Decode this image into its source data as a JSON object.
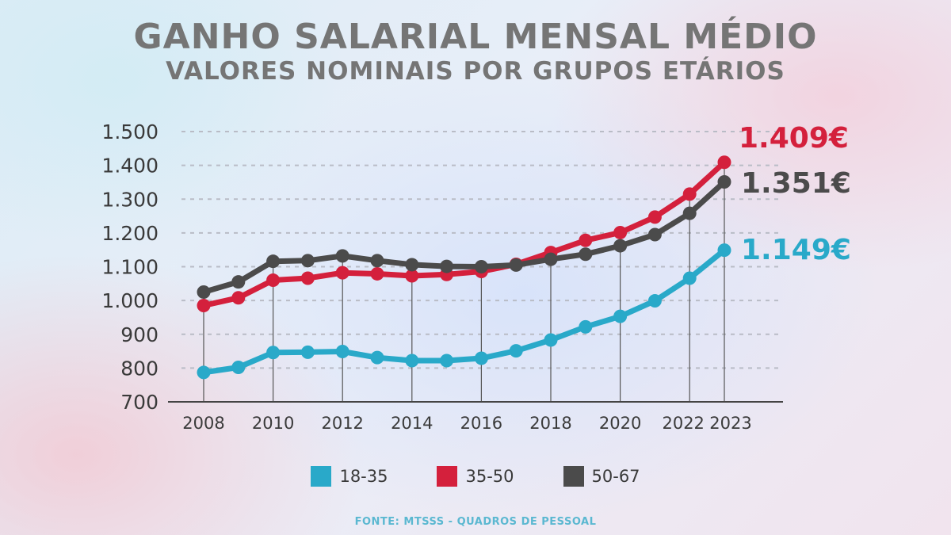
{
  "header": {
    "title": "GANHO SALARIAL MENSAL MÉDIO",
    "subtitle": "VALORES NOMINAIS POR GRUPOS ETÁRIOS"
  },
  "footer": {
    "source": "FONTE: MTSSS - QUADROS DE PESSOAL"
  },
  "chart_data": {
    "type": "line",
    "title": "GANHO SALARIAL MENSAL MÉDIO",
    "subtitle": "VALORES NOMINAIS POR GRUPOS ETÁRIOS",
    "xlabel": "",
    "ylabel": "",
    "x": [
      2008,
      2009,
      2010,
      2011,
      2012,
      2013,
      2014,
      2015,
      2016,
      2017,
      2018,
      2019,
      2020,
      2021,
      2022,
      2023
    ],
    "x_tick_labels": [
      "2008",
      "2010",
      "2012",
      "2014",
      "2016",
      "2018",
      "2020",
      "2022",
      "2023"
    ],
    "x_tick_values": [
      2008,
      2010,
      2012,
      2014,
      2016,
      2018,
      2020,
      2022,
      2023
    ],
    "ylim": [
      700,
      1500
    ],
    "y_ticks": [
      700,
      800,
      900,
      1000,
      1100,
      1200,
      1300,
      1400,
      1500
    ],
    "y_tick_labels": [
      "700",
      "800",
      "900",
      "1.000",
      "1.100",
      "1.200",
      "1.300",
      "1.400",
      "1.500"
    ],
    "grid": true,
    "legend_position": "bottom",
    "series": [
      {
        "name": "18-35",
        "color": "#29a9c9",
        "values": [
          787,
          802,
          846,
          847,
          849,
          831,
          822,
          822,
          829,
          851,
          883,
          922,
          953,
          999,
          1066,
          1149
        ],
        "end_label": "1.149€"
      },
      {
        "name": "35-50",
        "color": "#d4203c",
        "values": [
          985,
          1008,
          1060,
          1066,
          1082,
          1079,
          1073,
          1077,
          1086,
          1107,
          1142,
          1178,
          1201,
          1247,
          1315,
          1409
        ],
        "end_label": "1.409€"
      },
      {
        "name": "50-67",
        "color": "#4b4b4b",
        "values": [
          1025,
          1055,
          1116,
          1118,
          1132,
          1118,
          1106,
          1101,
          1100,
          1105,
          1122,
          1137,
          1162,
          1195,
          1258,
          1351
        ],
        "end_label": "1.351€"
      }
    ]
  }
}
